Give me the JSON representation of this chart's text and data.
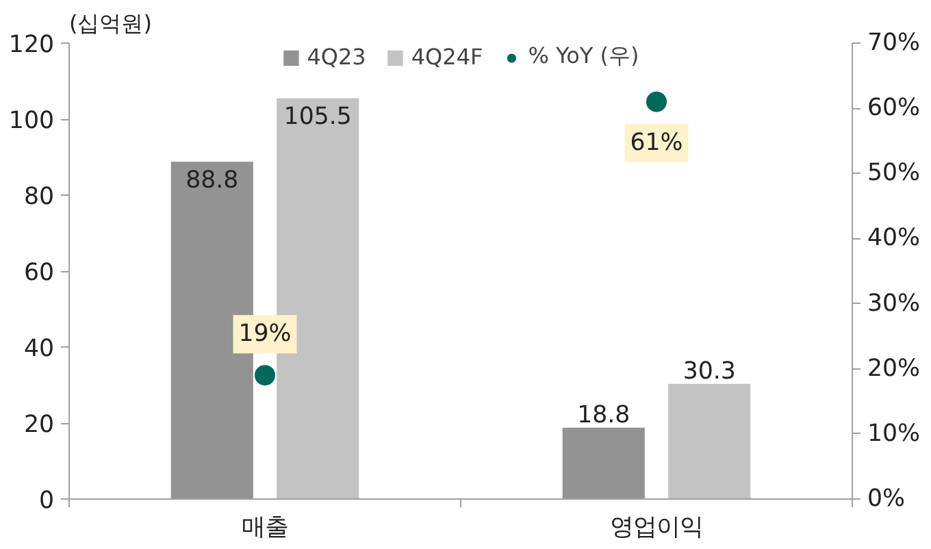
{
  "chart_data": {
    "type": "bar",
    "ylabel": "(십억원)",
    "categories": [
      "매출",
      "영업이익"
    ],
    "series": [
      {
        "name": "4Q23",
        "color": "#939393",
        "values": [
          88.8,
          18.8
        ],
        "value_labels": [
          "88.8",
          "18.8"
        ]
      },
      {
        "name": "4Q24F",
        "color": "#c3c3c3",
        "values": [
          105.5,
          30.3
        ],
        "value_labels": [
          "105.5",
          "30.3"
        ]
      },
      {
        "name": "% YoY (우)",
        "type": "scatter",
        "axis": "y2",
        "color": "#00695c",
        "values": [
          19,
          61
        ],
        "value_labels": [
          "19%",
          "61%"
        ]
      }
    ],
    "ylim": [
      0,
      120
    ],
    "yticks": [
      0,
      20,
      40,
      60,
      80,
      100,
      120
    ],
    "y2lim": [
      0,
      70
    ],
    "y2ticks": [
      {
        "value": 0,
        "label": "0%"
      },
      {
        "value": 10,
        "label": "10%"
      },
      {
        "value": 20,
        "label": "20%"
      },
      {
        "value": 30,
        "label": "30%"
      },
      {
        "value": 40,
        "label": "40%"
      },
      {
        "value": 50,
        "label": "50%"
      },
      {
        "value": 60,
        "label": "60%"
      },
      {
        "value": 70,
        "label": "70%"
      }
    ],
    "grid": false,
    "legend": "top",
    "marker": "circle"
  }
}
